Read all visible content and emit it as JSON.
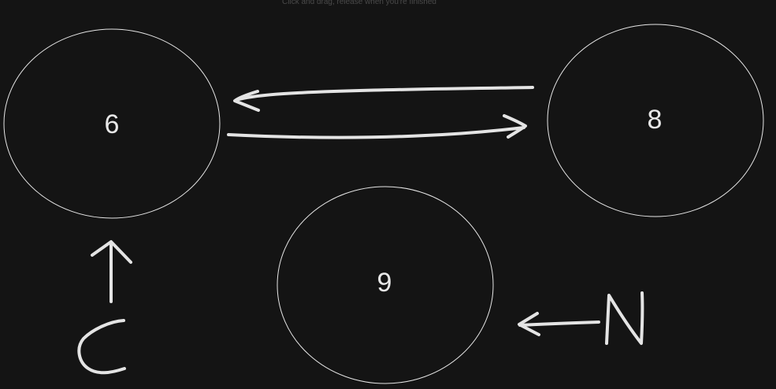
{
  "instruction": "Click and drag, release when you're finished",
  "nodes": [
    {
      "id": "6",
      "label": "6"
    },
    {
      "id": "8",
      "label": "8"
    },
    {
      "id": "9",
      "label": "9"
    }
  ],
  "annotations": [
    {
      "id": "c-letter",
      "text": "C"
    },
    {
      "id": "n-letter",
      "text": "N"
    }
  ],
  "colors": {
    "background": "#141414",
    "stroke": "#e4e4e4",
    "instruction": "#4a4a4a"
  }
}
